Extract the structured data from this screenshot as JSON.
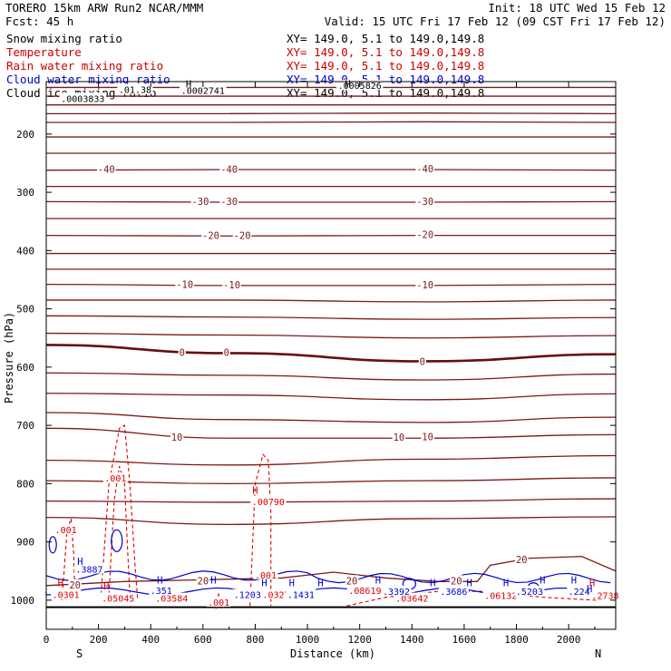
{
  "header": {
    "model_title": "TORERO  15km ARW   Run2    NCAR/MMM",
    "init": "Init: 18 UTC Wed 15 Feb 12",
    "fcst": "Fcst:   45 h",
    "valid": "Valid: 15 UTC Fri 17 Feb 12 (09 CST Fri 17 Feb 12)"
  },
  "legend": [
    {
      "label": "Snow mixing ratio",
      "xy": "",
      "color": "#000000"
    },
    {
      "label": "Temperature",
      "xy": "XY= 149.0,  5.1 to 149.0,149.8",
      "color": "#cc0000"
    },
    {
      "label": "Rain water mixing ratio",
      "xy": "XY= 149.0,  5.1 to 149.0,149.8",
      "color": "#cc0000"
    },
    {
      "label": "Cloud water mixing ratio",
      "xy": "XY= 149.0,  5.1 to 149.0,149.8",
      "color": "#0000cc"
    },
    {
      "label": "Cloud ice mixing ratio",
      "xy": "XY= 149.0,  5.1 to 149.0,149.8",
      "color": "#000000"
    }
  ],
  "legend_xy_top": "XY= 149.0,  5.1 to 149.0,149.8",
  "colors": {
    "temperature": "#7a1a1a",
    "zero_isotherm": "#6b0d0d",
    "rain": "#dd0000",
    "cloud_water": "#0000cc",
    "axis": "#000000"
  },
  "chart_data": {
    "type": "cross-section contour",
    "xlabel": "Distance (km)",
    "ylabel": "Pressure (hPa)",
    "xlim": [
      0,
      2180
    ],
    "ylim": [
      1050,
      110
    ],
    "x_ticks": [
      0,
      200,
      400,
      600,
      800,
      1000,
      1200,
      1400,
      1600,
      1800,
      2000
    ],
    "y_ticks": [
      200,
      300,
      400,
      500,
      600,
      700,
      800,
      900,
      1000
    ],
    "x_end_labels": {
      "left": "S",
      "right": "N"
    },
    "temperature_contours": [
      {
        "p": [
          120,
          120,
          120,
          120
        ]
      },
      {
        "p": [
          135,
          135,
          135,
          135
        ]
      },
      {
        "p": [
          150,
          150,
          150,
          150
        ]
      },
      {
        "p": [
          165,
          165,
          164,
          165
        ]
      },
      {
        "p": [
          180,
          180,
          179,
          180
        ]
      },
      {
        "p": [
          205,
          205,
          205,
          205
        ]
      },
      {
        "p": [
          233,
          233,
          233,
          233
        ]
      },
      {
        "p": [
          262,
          261,
          261,
          262
        ],
        "label": "-40"
      },
      {
        "p": [
          290,
          290,
          290,
          290
        ]
      },
      {
        "p": [
          316,
          317,
          317,
          316
        ],
        "label": "-30"
      },
      {
        "p": [
          345,
          345,
          345,
          345
        ]
      },
      {
        "p": [
          374,
          375,
          374,
          374
        ],
        "label": "-20"
      },
      {
        "p": [
          405,
          405,
          405,
          405
        ]
      },
      {
        "p": [
          432,
          432,
          432,
          432
        ]
      },
      {
        "p": [
          458,
          460,
          460,
          458
        ],
        "label": "-10"
      },
      {
        "p": [
          485,
          485,
          488,
          485
        ]
      },
      {
        "p": [
          512,
          514,
          518,
          515
        ]
      },
      {
        "p": [
          542,
          545,
          550,
          546
        ]
      },
      {
        "p": [
          562,
          576,
          590,
          578
        ],
        "label": "0",
        "bold": true
      },
      {
        "p": [
          610,
          614,
          622,
          612
        ]
      },
      {
        "p": [
          645,
          648,
          656,
          646
        ]
      },
      {
        "p": [
          678,
          690,
          695,
          686
        ]
      },
      {
        "p": [
          705,
          722,
          722,
          716
        ],
        "label": "10"
      },
      {
        "p": [
          760,
          768,
          758,
          752
        ]
      },
      {
        "p": [
          795,
          800,
          795,
          790
        ]
      },
      {
        "p": [
          830,
          832,
          830,
          826
        ]
      },
      {
        "p": [
          858,
          870,
          860,
          857
        ]
      }
    ],
    "temperature_labels": [
      {
        "x": 230,
        "p": 262,
        "t": "-40"
      },
      {
        "x": 700,
        "p": 262,
        "t": "-40"
      },
      {
        "x": 1450,
        "p": 261,
        "t": "-40"
      },
      {
        "x": 590,
        "p": 317,
        "t": "-30"
      },
      {
        "x": 700,
        "p": 317,
        "t": "-30"
      },
      {
        "x": 1450,
        "p": 317,
        "t": "-30"
      },
      {
        "x": 630,
        "p": 375,
        "t": "-20"
      },
      {
        "x": 750,
        "p": 375,
        "t": "-20"
      },
      {
        "x": 1450,
        "p": 374,
        "t": "-20"
      },
      {
        "x": 530,
        "p": 459,
        "t": "-10"
      },
      {
        "x": 710,
        "p": 460,
        "t": "-10"
      },
      {
        "x": 1450,
        "p": 460,
        "t": "-10"
      },
      {
        "x": 520,
        "p": 576,
        "t": "0"
      },
      {
        "x": 690,
        "p": 576,
        "t": "0"
      },
      {
        "x": 1440,
        "p": 592,
        "t": "0"
      },
      {
        "x": 500,
        "p": 722,
        "t": "10"
      },
      {
        "x": 1350,
        "p": 722,
        "t": "10"
      },
      {
        "x": 1460,
        "p": 721,
        "t": "10"
      },
      {
        "x": 600,
        "p": 968,
        "t": "20"
      },
      {
        "x": 1170,
        "p": 968,
        "t": "20"
      },
      {
        "x": 1570,
        "p": 968,
        "t": "20"
      },
      {
        "x": 1820,
        "p": 932,
        "t": "20"
      },
      {
        "x": 110,
        "p": 975,
        "t": "20"
      }
    ],
    "rain_labels": [
      {
        "x": 75,
        "p": 880,
        "t": ".001"
      },
      {
        "x": 265,
        "p": 792,
        "t": ".001"
      },
      {
        "x": 850,
        "p": 832,
        "t": ".00790"
      },
      {
        "x": 840,
        "p": 958,
        "t": ".001"
      },
      {
        "x": 75,
        "p": 992,
        "t": ".0301"
      },
      {
        "x": 275,
        "p": 998,
        "t": ".05045"
      },
      {
        "x": 480,
        "p": 998,
        "t": ".03584"
      },
      {
        "x": 660,
        "p": 1005,
        "t": ".001"
      },
      {
        "x": 880,
        "p": 992,
        "t": ".0327"
      },
      {
        "x": 1220,
        "p": 985,
        "t": ".08619"
      },
      {
        "x": 1400,
        "p": 998,
        "t": ".03642"
      },
      {
        "x": 1740,
        "p": 993,
        "t": ".06132"
      },
      {
        "x": 2140,
        "p": 993,
        "t": ".2738"
      }
    ],
    "cloud_water_labels": [
      {
        "x": 165,
        "p": 948,
        "t": ".3887"
      },
      {
        "x": 440,
        "p": 985,
        "t": ".351"
      },
      {
        "x": 770,
        "p": 992,
        "t": ".1203"
      },
      {
        "x": 975,
        "p": 992,
        "t": ".1431"
      },
      {
        "x": 1340,
        "p": 986,
        "t": ".3392"
      },
      {
        "x": 1560,
        "p": 986,
        "t": ".3686"
      },
      {
        "x": 1850,
        "p": 986,
        "t": ".5203"
      },
      {
        "x": 2040,
        "p": 986,
        "t": ".224"
      }
    ],
    "ice_labels": [
      {
        "x": 140,
        "p": 140,
        "t": ".0003833"
      },
      {
        "x": 340,
        "p": 125,
        "t": ".01.38"
      },
      {
        "x": 600,
        "p": 126,
        "t": ".0002741"
      },
      {
        "x": 1200,
        "p": 118,
        "t": ".0005826"
      }
    ],
    "h_markers": [
      {
        "x": 545,
        "p": 114,
        "c": "ice"
      },
      {
        "x": 1155,
        "p": 114,
        "c": "ice"
      },
      {
        "x": 800,
        "p": 811,
        "c": "rain"
      },
      {
        "x": 130,
        "p": 933,
        "c": "cloud"
      },
      {
        "x": 55,
        "p": 970,
        "c": "rain"
      },
      {
        "x": 230,
        "p": 975,
        "c": "rain"
      },
      {
        "x": 435,
        "p": 965,
        "c": "cloud"
      },
      {
        "x": 640,
        "p": 965,
        "c": "cloud"
      },
      {
        "x": 835,
        "p": 970,
        "c": "cloud"
      },
      {
        "x": 940,
        "p": 970,
        "c": "cloud"
      },
      {
        "x": 1050,
        "p": 970,
        "c": "cloud"
      },
      {
        "x": 1270,
        "p": 965,
        "c": "cloud"
      },
      {
        "x": 1480,
        "p": 970,
        "c": "cloud"
      },
      {
        "x": 1620,
        "p": 970,
        "c": "cloud"
      },
      {
        "x": 1760,
        "p": 970,
        "c": "cloud"
      },
      {
        "x": 1900,
        "p": 965,
        "c": "cloud"
      },
      {
        "x": 2020,
        "p": 965,
        "c": "cloud"
      },
      {
        "x": 2080,
        "p": 980,
        "c": "cloud"
      },
      {
        "x": 2090,
        "p": 970,
        "c": "rain"
      }
    ]
  }
}
